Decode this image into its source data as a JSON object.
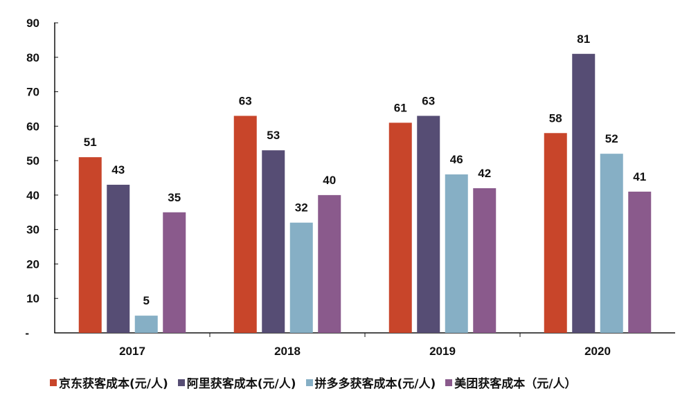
{
  "chart_data": {
    "type": "bar",
    "categories": [
      "2017",
      "2018",
      "2019",
      "2020"
    ],
    "series": [
      {
        "name": "京东获客成本(元/人)",
        "values": [
          51,
          63,
          61,
          58
        ],
        "color": "#C8452A"
      },
      {
        "name": "阿里获客成本(元/人)",
        "values": [
          43,
          53,
          63,
          81
        ],
        "color": "#564D74"
      },
      {
        "name": "拼多多获客成本(元/人)",
        "values": [
          5,
          32,
          46,
          52
        ],
        "color": "#86AFC5"
      },
      {
        "name": "美团获客成本（元/人）",
        "values": [
          35,
          40,
          42,
          41
        ],
        "color": "#8A5A8C"
      }
    ],
    "ylim": [
      0,
      90
    ],
    "yticks": [
      "-",
      "10",
      "20",
      "30",
      "40",
      "50",
      "60",
      "70",
      "80",
      "90"
    ],
    "title": "",
    "xlabel": "",
    "ylabel": "",
    "grid": false,
    "legend": "bottom"
  }
}
